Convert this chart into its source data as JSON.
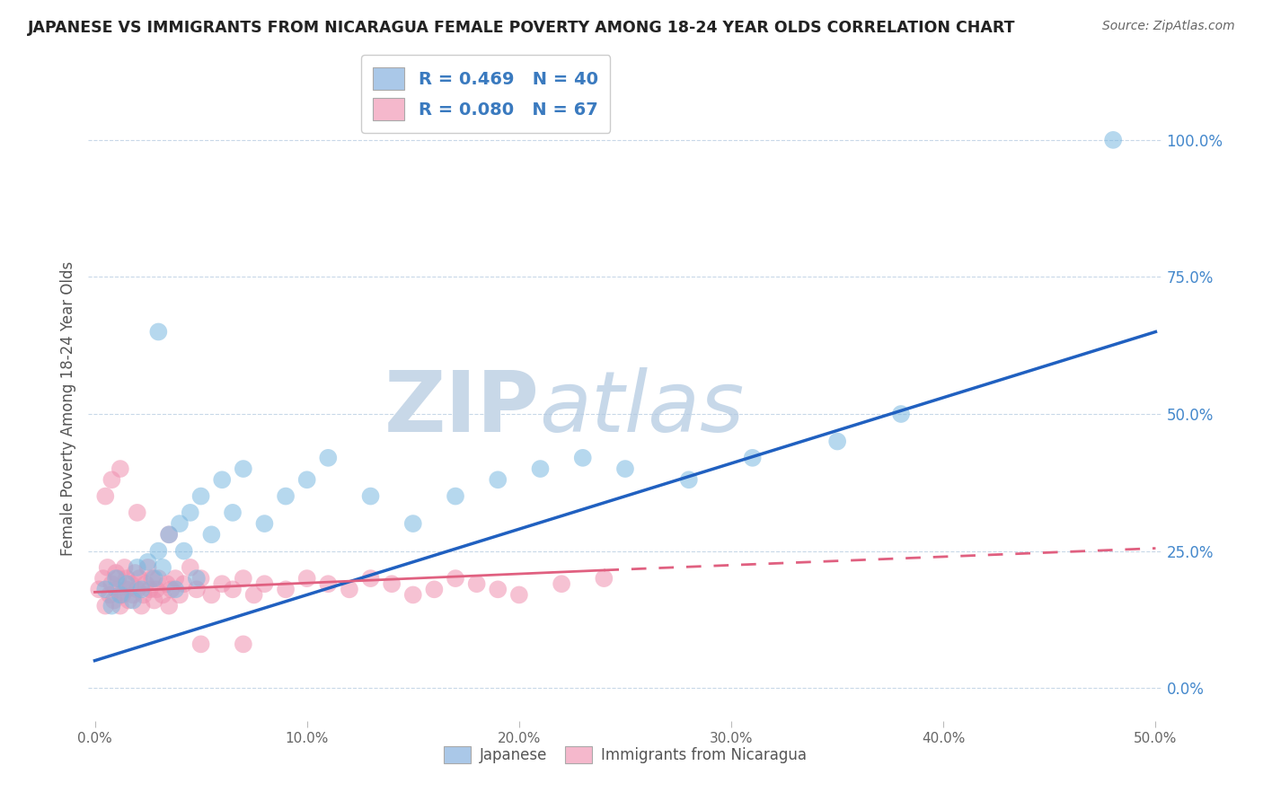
{
  "title": "JAPANESE VS IMMIGRANTS FROM NICARAGUA FEMALE POVERTY AMONG 18-24 YEAR OLDS CORRELATION CHART",
  "source": "Source: ZipAtlas.com",
  "ylabel": "Female Poverty Among 18-24 Year Olds",
  "xlim": [
    -0.003,
    0.503
  ],
  "ylim": [
    -0.06,
    1.08
  ],
  "xticks": [
    0.0,
    0.1,
    0.2,
    0.3,
    0.4,
    0.5
  ],
  "yticks": [
    0.0,
    0.25,
    0.5,
    0.75,
    1.0
  ],
  "ytick_labels": [
    "0.0%",
    "25.0%",
    "50.0%",
    "75.0%",
    "100.0%"
  ],
  "xtick_labels": [
    "0.0%",
    "10.0%",
    "20.0%",
    "30.0%",
    "40.0%",
    "50.0%"
  ],
  "legend1_label": "R = 0.469   N = 40",
  "legend2_label": "R = 0.080   N = 67",
  "legend1_color": "#aac8e8",
  "legend2_color": "#f5b8cc",
  "series1_color": "#7ab8e0",
  "series2_color": "#f090b0",
  "trendline1_color": "#2060c0",
  "trendline2_color": "#e06080",
  "watermark_color": "#dce8f4",
  "background_color": "#ffffff",
  "series1_name": "Japanese",
  "series2_name": "Immigrants from Nicaragua",
  "japanese_x": [
    0.005,
    0.008,
    0.01,
    0.012,
    0.015,
    0.018,
    0.02,
    0.022,
    0.025,
    0.028,
    0.03,
    0.032,
    0.035,
    0.038,
    0.04,
    0.042,
    0.045,
    0.048,
    0.05,
    0.055,
    0.06,
    0.065,
    0.07,
    0.08,
    0.09,
    0.1,
    0.11,
    0.13,
    0.15,
    0.17,
    0.19,
    0.21,
    0.23,
    0.25,
    0.28,
    0.31,
    0.35,
    0.38,
    0.48,
    0.03
  ],
  "japanese_y": [
    0.18,
    0.15,
    0.2,
    0.17,
    0.19,
    0.16,
    0.22,
    0.18,
    0.23,
    0.2,
    0.25,
    0.22,
    0.28,
    0.18,
    0.3,
    0.25,
    0.32,
    0.2,
    0.35,
    0.28,
    0.38,
    0.32,
    0.4,
    0.3,
    0.35,
    0.38,
    0.42,
    0.35,
    0.3,
    0.35,
    0.38,
    0.4,
    0.42,
    0.4,
    0.38,
    0.42,
    0.45,
    0.5,
    1.0,
    0.65
  ],
  "nicaragua_x": [
    0.002,
    0.004,
    0.005,
    0.006,
    0.007,
    0.008,
    0.009,
    0.01,
    0.01,
    0.011,
    0.012,
    0.013,
    0.014,
    0.015,
    0.015,
    0.016,
    0.017,
    0.018,
    0.019,
    0.02,
    0.021,
    0.022,
    0.023,
    0.024,
    0.025,
    0.026,
    0.027,
    0.028,
    0.029,
    0.03,
    0.032,
    0.034,
    0.035,
    0.036,
    0.038,
    0.04,
    0.042,
    0.045,
    0.048,
    0.05,
    0.055,
    0.06,
    0.065,
    0.07,
    0.075,
    0.08,
    0.09,
    0.1,
    0.11,
    0.12,
    0.13,
    0.14,
    0.15,
    0.16,
    0.17,
    0.18,
    0.19,
    0.2,
    0.22,
    0.24,
    0.005,
    0.008,
    0.012,
    0.02,
    0.035,
    0.05,
    0.07
  ],
  "nicaragua_y": [
    0.18,
    0.2,
    0.15,
    0.22,
    0.17,
    0.19,
    0.16,
    0.21,
    0.18,
    0.2,
    0.15,
    0.17,
    0.22,
    0.18,
    0.2,
    0.16,
    0.19,
    0.17,
    0.21,
    0.18,
    0.2,
    0.15,
    0.17,
    0.19,
    0.22,
    0.18,
    0.2,
    0.16,
    0.18,
    0.2,
    0.17,
    0.19,
    0.15,
    0.18,
    0.2,
    0.17,
    0.19,
    0.22,
    0.18,
    0.2,
    0.17,
    0.19,
    0.18,
    0.2,
    0.17,
    0.19,
    0.18,
    0.2,
    0.19,
    0.18,
    0.2,
    0.19,
    0.17,
    0.18,
    0.2,
    0.19,
    0.18,
    0.17,
    0.19,
    0.2,
    0.35,
    0.38,
    0.4,
    0.32,
    0.28,
    0.08,
    0.08
  ],
  "trend1_x0": 0.0,
  "trend1_y0": 0.05,
  "trend1_x1": 0.5,
  "trend1_y1": 0.65,
  "trend2_solid_x0": 0.0,
  "trend2_solid_y0": 0.175,
  "trend2_solid_x1": 0.24,
  "trend2_solid_y1": 0.215,
  "trend2_dash_x1": 0.5,
  "trend2_dash_y1": 0.255
}
